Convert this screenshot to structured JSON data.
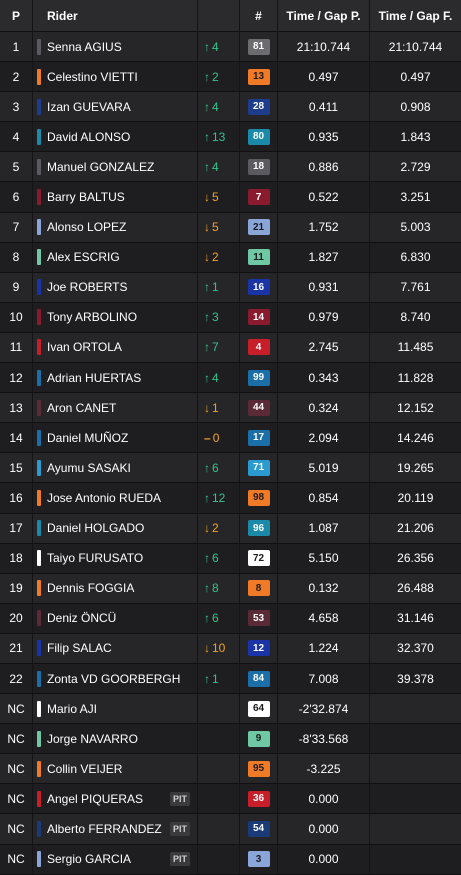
{
  "headers": {
    "pos": "P",
    "rider": "Rider",
    "num": "#",
    "time": "Time / Gap P.",
    "gap": "Time / Gap F."
  },
  "pit_label": "PIT",
  "rows": [
    {
      "pos": "1",
      "rider": "Senna AGIUS",
      "team_color": "#5a5a60",
      "dir": "up",
      "delta": "4",
      "num": "81",
      "badge_bg": "#6b6b70",
      "badge_fg": "#ffffff",
      "time": "21:10.744",
      "gap": "21:10.744",
      "pit": false
    },
    {
      "pos": "2",
      "rider": "Celestino VIETTI",
      "team_color": "#f07a26",
      "dir": "up",
      "delta": "2",
      "num": "13",
      "badge_bg": "#f07a26",
      "badge_fg": "#1b1b1d",
      "time": "0.497",
      "gap": "0.497",
      "pit": false
    },
    {
      "pos": "3",
      "rider": "Izan GUEVARA",
      "team_color": "#1d3c8c",
      "dir": "up",
      "delta": "4",
      "num": "28",
      "badge_bg": "#1d3c8c",
      "badge_fg": "#ffffff",
      "time": "0.411",
      "gap": "0.908",
      "pit": false
    },
    {
      "pos": "4",
      "rider": "David ALONSO",
      "team_color": "#1a8aa8",
      "dir": "up",
      "delta": "13",
      "num": "80",
      "badge_bg": "#1a8aa8",
      "badge_fg": "#ffffff",
      "time": "0.935",
      "gap": "1.843",
      "pit": false
    },
    {
      "pos": "5",
      "rider": "Manuel GONZALEZ",
      "team_color": "#5a5a60",
      "dir": "up",
      "delta": "4",
      "num": "18",
      "badge_bg": "#5a5a60",
      "badge_fg": "#ffffff",
      "time": "0.886",
      "gap": "2.729",
      "pit": false
    },
    {
      "pos": "6",
      "rider": "Barry BALTUS",
      "team_color": "#8a1a2e",
      "dir": "down",
      "delta": "5",
      "num": "7",
      "badge_bg": "#8a1a2e",
      "badge_fg": "#ffffff",
      "time": "0.522",
      "gap": "3.251",
      "pit": false
    },
    {
      "pos": "7",
      "rider": "Alonso LOPEZ",
      "team_color": "#8aa6d8",
      "dir": "down",
      "delta": "5",
      "num": "21",
      "badge_bg": "#8aa6d8",
      "badge_fg": "#1b1b1d",
      "time": "1.752",
      "gap": "5.003",
      "pit": false
    },
    {
      "pos": "8",
      "rider": "Alex ESCRIG",
      "team_color": "#6fc7a4",
      "dir": "down",
      "delta": "2",
      "num": "11",
      "badge_bg": "#6fc7a4",
      "badge_fg": "#1b1b1d",
      "time": "1.827",
      "gap": "6.830",
      "pit": false
    },
    {
      "pos": "9",
      "rider": "Joe ROBERTS",
      "team_color": "#1a34a8",
      "dir": "up",
      "delta": "1",
      "num": "16",
      "badge_bg": "#1a34a8",
      "badge_fg": "#ffffff",
      "time": "0.931",
      "gap": "7.761",
      "pit": false
    },
    {
      "pos": "10",
      "rider": "Tony ARBOLINO",
      "team_color": "#8a1a2e",
      "dir": "up",
      "delta": "3",
      "num": "14",
      "badge_bg": "#8a1a2e",
      "badge_fg": "#ffffff",
      "time": "0.979",
      "gap": "8.740",
      "pit": false
    },
    {
      "pos": "11",
      "rider": "Ivan ORTOLA",
      "team_color": "#c81e2a",
      "dir": "up",
      "delta": "7",
      "num": "4",
      "badge_bg": "#c81e2a",
      "badge_fg": "#ffffff",
      "time": "2.745",
      "gap": "11.485",
      "pit": false
    },
    {
      "pos": "12",
      "rider": "Adrian HUERTAS",
      "team_color": "#1a6fa8",
      "dir": "up",
      "delta": "4",
      "num": "99",
      "badge_bg": "#1a6fa8",
      "badge_fg": "#ffffff",
      "time": "0.343",
      "gap": "11.828",
      "pit": false
    },
    {
      "pos": "13",
      "rider": "Aron CANET",
      "team_color": "#5a2a36",
      "dir": "down",
      "delta": "1",
      "num": "44",
      "badge_bg": "#5a2a36",
      "badge_fg": "#ffffff",
      "time": "0.324",
      "gap": "12.152",
      "pit": false
    },
    {
      "pos": "14",
      "rider": "Daniel MUÑOZ",
      "team_color": "#1a6fa8",
      "dir": "same",
      "delta": "0",
      "num": "17",
      "badge_bg": "#1a6fa8",
      "badge_fg": "#ffffff",
      "time": "2.094",
      "gap": "14.246",
      "pit": false
    },
    {
      "pos": "15",
      "rider": "Ayumu SASAKI",
      "team_color": "#2a9ad0",
      "dir": "up",
      "delta": "6",
      "num": "71",
      "badge_bg": "#2a9ad0",
      "badge_fg": "#ffffff",
      "time": "5.019",
      "gap": "19.265",
      "pit": false
    },
    {
      "pos": "16",
      "rider": "Jose Antonio RUEDA",
      "team_color": "#f07a26",
      "dir": "up",
      "delta": "12",
      "num": "98",
      "badge_bg": "#f07a26",
      "badge_fg": "#1b1b1d",
      "time": "0.854",
      "gap": "20.119",
      "pit": false
    },
    {
      "pos": "17",
      "rider": "Daniel HOLGADO",
      "team_color": "#1a8aa8",
      "dir": "down",
      "delta": "2",
      "num": "96",
      "badge_bg": "#1a8aa8",
      "badge_fg": "#ffffff",
      "time": "1.087",
      "gap": "21.206",
      "pit": false
    },
    {
      "pos": "18",
      "rider": "Taiyo FURUSATO",
      "team_color": "#ffffff",
      "dir": "up",
      "delta": "6",
      "num": "72",
      "badge_bg": "#ffffff",
      "badge_fg": "#1b1b1d",
      "time": "5.150",
      "gap": "26.356",
      "pit": false
    },
    {
      "pos": "19",
      "rider": "Dennis FOGGIA",
      "team_color": "#f07a26",
      "dir": "up",
      "delta": "8",
      "num": "8",
      "badge_bg": "#f07a26",
      "badge_fg": "#1b1b1d",
      "time": "0.132",
      "gap": "26.488",
      "pit": false
    },
    {
      "pos": "20",
      "rider": "Deniz ÖNCÜ",
      "team_color": "#5a2a36",
      "dir": "up",
      "delta": "6",
      "num": "53",
      "badge_bg": "#5a2a36",
      "badge_fg": "#ffffff",
      "time": "4.658",
      "gap": "31.146",
      "pit": false
    },
    {
      "pos": "21",
      "rider": "Filip SALAC",
      "team_color": "#1a34a8",
      "dir": "down",
      "delta": "10",
      "num": "12",
      "badge_bg": "#1a34a8",
      "badge_fg": "#ffffff",
      "time": "1.224",
      "gap": "32.370",
      "pit": false
    },
    {
      "pos": "22",
      "rider": "Zonta VD GOORBERGH",
      "team_color": "#1a6fa8",
      "dir": "up",
      "delta": "1",
      "num": "84",
      "badge_bg": "#1a6fa8",
      "badge_fg": "#ffffff",
      "time": "7.008",
      "gap": "39.378",
      "pit": false
    },
    {
      "pos": "NC",
      "rider": "Mario AJI",
      "team_color": "#ffffff",
      "dir": "",
      "delta": "",
      "num": "64",
      "badge_bg": "#ffffff",
      "badge_fg": "#1b1b1d",
      "time": "-2'32.874",
      "gap": "",
      "pit": false
    },
    {
      "pos": "NC",
      "rider": "Jorge NAVARRO",
      "team_color": "#6fc7a4",
      "dir": "",
      "delta": "",
      "num": "9",
      "badge_bg": "#6fc7a4",
      "badge_fg": "#1b1b1d",
      "time": "-8'33.568",
      "gap": "",
      "pit": false
    },
    {
      "pos": "NC",
      "rider": "Collin VEIJER",
      "team_color": "#f07a26",
      "dir": "",
      "delta": "",
      "num": "95",
      "badge_bg": "#f07a26",
      "badge_fg": "#1b1b1d",
      "time": "-3.225",
      "gap": "",
      "pit": false
    },
    {
      "pos": "NC",
      "rider": "Angel PIQUERAS",
      "team_color": "#c81e2a",
      "dir": "",
      "delta": "",
      "num": "36",
      "badge_bg": "#c81e2a",
      "badge_fg": "#ffffff",
      "time": "0.000",
      "gap": "",
      "pit": true
    },
    {
      "pos": "NC",
      "rider": "Alberto FERRANDEZ",
      "team_color": "#1a3a78",
      "dir": "",
      "delta": "",
      "num": "54",
      "badge_bg": "#1a3a78",
      "badge_fg": "#ffffff",
      "time": "0.000",
      "gap": "",
      "pit": true
    },
    {
      "pos": "NC",
      "rider": "Sergio GARCIA",
      "team_color": "#8aa6d8",
      "dir": "",
      "delta": "",
      "num": "3",
      "badge_bg": "#8aa6d8",
      "badge_fg": "#1b1b1d",
      "time": "0.000",
      "gap": "",
      "pit": true
    }
  ]
}
